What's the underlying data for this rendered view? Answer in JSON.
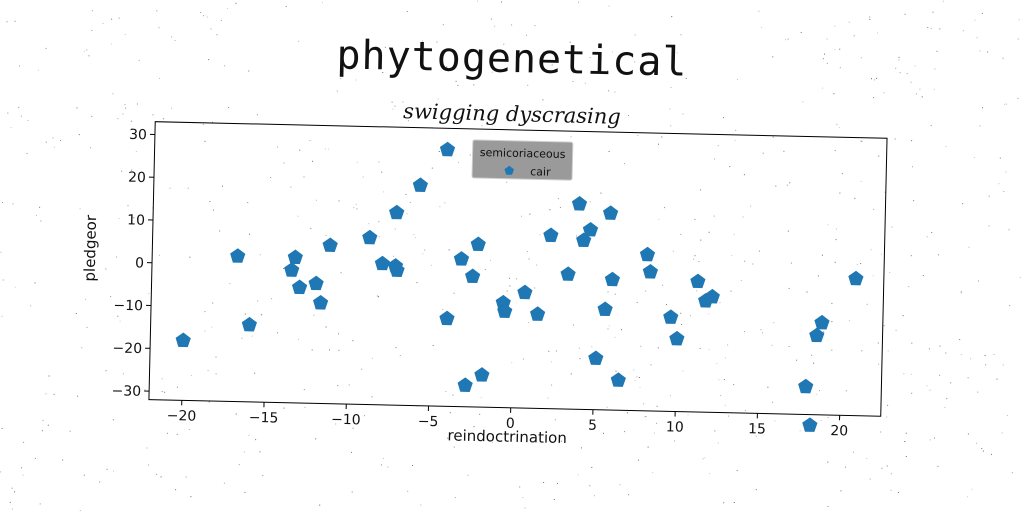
{
  "chart_data": {
    "type": "scatter",
    "title": "phytogenetical",
    "subtitle": "swigging dyscrasing",
    "xlabel": "reindoctrination",
    "ylabel": "pledgeor",
    "xlim": [
      -22,
      22.5
    ],
    "ylim": [
      -32,
      33
    ],
    "xticks": [
      -20,
      -15,
      -10,
      -5,
      0,
      5,
      10,
      15,
      20
    ],
    "yticks": [
      -30,
      -20,
      -10,
      0,
      10,
      20,
      30
    ],
    "grid": false,
    "legend": {
      "title": "semicoriaceous",
      "placement": "top-center"
    },
    "series": [
      {
        "name": "cair",
        "color": "#1f77b4",
        "marker": "pentagon",
        "points": [
          [
            -20,
            -18
          ],
          [
            -16.8,
            2
          ],
          [
            -16,
            -14
          ],
          [
            -13.5,
            -1
          ],
          [
            -13.3,
            2
          ],
          [
            -13,
            -5
          ],
          [
            -12,
            -4
          ],
          [
            -11.7,
            -8.5
          ],
          [
            -11.2,
            5
          ],
          [
            -8.8,
            7
          ],
          [
            -8,
            1
          ],
          [
            -7.2,
            0.5
          ],
          [
            -7.1,
            -0.5
          ],
          [
            -7.2,
            13
          ],
          [
            -5.8,
            19.5
          ],
          [
            -4.2,
            28
          ],
          [
            -4,
            -11.5
          ],
          [
            -3.2,
            2.5
          ],
          [
            -2.8,
            -27
          ],
          [
            -2.5,
            -1.5
          ],
          [
            -2.2,
            6
          ],
          [
            -1.8,
            -24.5
          ],
          [
            -0.6,
            -7.5
          ],
          [
            -0.5,
            -9.5
          ],
          [
            0.7,
            -5
          ],
          [
            1.5,
            -10
          ],
          [
            2.2,
            8.5
          ],
          [
            3.3,
            -0.5
          ],
          [
            3.9,
            16
          ],
          [
            4.2,
            7.5
          ],
          [
            4.6,
            10
          ],
          [
            5.1,
            -20
          ],
          [
            5.6,
            -8.5
          ],
          [
            5.8,
            14
          ],
          [
            6,
            -1.5
          ],
          [
            6.5,
            -25
          ],
          [
            8.1,
            4.5
          ],
          [
            8.3,
            0.5
          ],
          [
            9.6,
            -10
          ],
          [
            10,
            -15
          ],
          [
            11.2,
            -1.5
          ],
          [
            11.7,
            -6
          ],
          [
            12.1,
            -5
          ],
          [
            17.9,
            -25.5
          ],
          [
            18.2,
            -34.5
          ],
          [
            18.5,
            -13.5
          ],
          [
            18.8,
            -10.5
          ],
          [
            20.8,
            0
          ]
        ]
      }
    ]
  }
}
